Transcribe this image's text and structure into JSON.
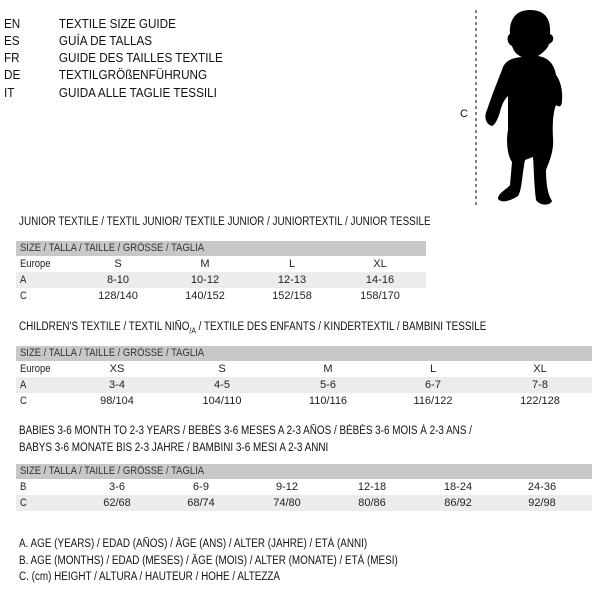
{
  "languages": [
    {
      "code": "EN",
      "label": "TEXTILE SIZE GUIDE"
    },
    {
      "code": "ES",
      "label": "GUÍA DE TALLAS"
    },
    {
      "code": "FR",
      "label": "GUIDE DES TAILLES TEXTILE"
    },
    {
      "code": "DE",
      "label": "TEXTILGRÖßENFÜHRUNG"
    },
    {
      "code": "IT",
      "label": "GUIDA ALLE TAGLIE TESSILI"
    }
  ],
  "figure": {
    "measure_label": "C",
    "icon": "child-silhouette-icon"
  },
  "size_header": "SIZE / TALLA / TAILLE / GRÖSSE / TAGLIA",
  "junior": {
    "title": "JUNIOR TEXTILE / TEXTIL JUNIOR/ TEXTILE JUNIOR / JUNIORTEXTIL / JUNIOR TESSILE",
    "rows": [
      {
        "label": "Europe",
        "cells": [
          "S",
          "M",
          "L",
          "XL"
        ]
      },
      {
        "label": "A",
        "cells": [
          "8-10",
          "10-12",
          "12-13",
          "14-16"
        ]
      },
      {
        "label": "C",
        "cells": [
          "128/140",
          "140/152",
          "152/158",
          "158/170"
        ]
      }
    ]
  },
  "children": {
    "title_pre": "CHILDREN'S TEXTILE / TEXTIL NIÑO",
    "title_sub": "/A",
    "title_post": " / TEXTILE DES ENFANTS / KINDERTEXTIL / BAMBINI TESSILE",
    "rows": [
      {
        "label": "Europe",
        "cells": [
          "XS",
          "S",
          "M",
          "L",
          "XL"
        ]
      },
      {
        "label": "A",
        "cells": [
          "3-4",
          "4-5",
          "5-6",
          "6-7",
          "7-8"
        ]
      },
      {
        "label": "C",
        "cells": [
          "98/104",
          "104/110",
          "110/116",
          "116/122",
          "122/128"
        ]
      }
    ]
  },
  "babies": {
    "title_line1": "BABIES 3-6 MONTH TO 2-3 YEARS / BEBÉS 3-6 MESES A 2-3 AÑOS / BÉBÉS 3-6 MOIS À 2-3 ANS /",
    "title_line2": "BABYS 3-6 MONATE BIS 2-3 JAHRE / BAMBINI 3-6 MESI A 2-3 ANNI",
    "rows": [
      {
        "label": "B",
        "cells": [
          "3-6",
          "6-9",
          "9-12",
          "12-18",
          "18-24",
          "24-36"
        ]
      },
      {
        "label": "C",
        "cells": [
          "62/68",
          "68/74",
          "74/80",
          "80/86",
          "86/92",
          "92/98"
        ]
      }
    ]
  },
  "legend": [
    "A. AGE (YEARS) / EDAD (AÑOS) / ÂGE (ANS) / ALTER (JAHRE) / ETÀ (ANNI)",
    "B. AGE (MONTHS) / EDAD (MESES) / ÂGE (MOIS) / ALTER (MONATE) / ETÀ (MESI)",
    "C. (cm) HEIGHT / ALTURA / HAUTEUR / HÖHE / ALTEZZA"
  ]
}
